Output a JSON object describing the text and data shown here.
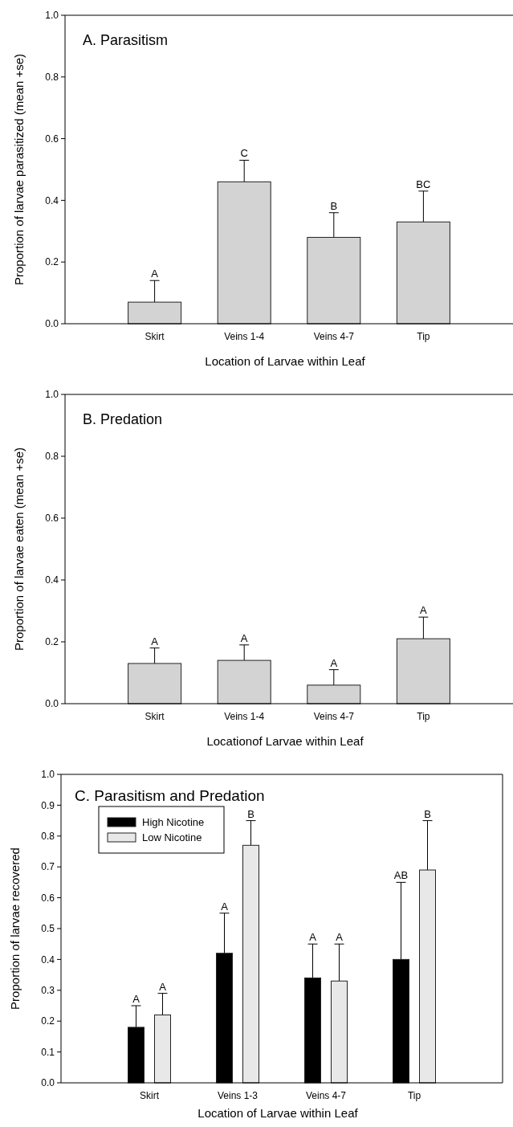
{
  "chart_data": [
    {
      "type": "bar",
      "title": "A. Parasitism",
      "xlabel": "Location of Larvae within Leaf",
      "ylabel": "Proportion of larvae parasitized (mean +se)",
      "categories": [
        "Skirt",
        "Veins 1-4",
        "Veins 4-7",
        "Tip"
      ],
      "series": [
        {
          "color": "#d3d3d3",
          "values": [
            0.07,
            0.46,
            0.28,
            0.33
          ],
          "errors": [
            [
              0.07,
              0.14
            ],
            [
              0.46,
              0.53
            ],
            [
              0.28,
              0.36
            ],
            [
              0.33,
              0.43
            ]
          ]
        }
      ],
      "ylim": [
        0,
        1
      ],
      "yticks": [
        {
          "value": 0,
          "label": "0.0"
        },
        {
          "value": 0.2,
          "label": "0.2"
        },
        {
          "value": 0.4,
          "label": "0.4"
        },
        {
          "value": 0.6,
          "label": "0.6"
        },
        {
          "value": 0.8,
          "label": "0.8"
        },
        {
          "value": 1,
          "label": "1.0"
        }
      ],
      "annotations": [
        {
          "text": "A",
          "x": "Skirt",
          "y": 0.14
        },
        {
          "text": "C",
          "x": "Veins 1-4",
          "y": 0.53
        },
        {
          "text": "B",
          "x": "Veins 4-7",
          "y": 0.36
        },
        {
          "text": "BC",
          "x": "Tip",
          "y": 0.43
        }
      ],
      "grid": false,
      "legend": false
    },
    {
      "type": "bar",
      "title": "B. Predation",
      "xlabel": "Locationof Larvae within Leaf",
      "ylabel": "Proportion of larvae eaten (mean +se)",
      "categories": [
        "Skirt",
        "Veins 1-4",
        "Veins 4-7",
        "Tip"
      ],
      "series": [
        {
          "color": "#d3d3d3",
          "values": [
            0.13,
            0.14,
            0.06,
            0.21
          ],
          "errors": [
            [
              0.13,
              0.18
            ],
            [
              0.14,
              0.19
            ],
            [
              0.06,
              0.11
            ],
            [
              0.21,
              0.28
            ]
          ]
        }
      ],
      "ylim": [
        0,
        1
      ],
      "yticks": [
        {
          "value": 0,
          "label": "0.0"
        },
        {
          "value": 0.2,
          "label": "0.2"
        },
        {
          "value": 0.4,
          "label": "0.4"
        },
        {
          "value": 0.6,
          "label": "0.6"
        },
        {
          "value": 0.8,
          "label": "0.8"
        },
        {
          "value": 1,
          "label": "1.0"
        }
      ],
      "annotations": [
        {
          "text": "A",
          "x": "Skirt",
          "y": 0.18
        },
        {
          "text": "A",
          "x": "Veins 1-4",
          "y": 0.19
        },
        {
          "text": "A",
          "x": "Veins 4-7",
          "y": 0.11
        },
        {
          "text": "A",
          "x": "Tip",
          "y": 0.28
        }
      ],
      "grid": false,
      "legend": false
    },
    {
      "type": "bar",
      "title": "C. Parasitism and Predation",
      "xlabel": "Location of Larvae within Leaf",
      "ylabel": "Proportion of larvae recovered",
      "categories": [
        "Skirt",
        "Veins 1-3",
        "Veins 4-7",
        "Tip"
      ],
      "series": [
        {
          "name": "High Nicotine",
          "color": "#000000",
          "values": [
            0.18,
            0.42,
            0.34,
            0.4
          ],
          "errors": [
            [
              0.18,
              0.25
            ],
            [
              0.42,
              0.55
            ],
            [
              0.34,
              0.45
            ],
            [
              0.4,
              0.65
            ]
          ]
        },
        {
          "name": "Low Nicotine",
          "color": "#e8e8e8",
          "values": [
            0.22,
            0.77,
            0.33,
            0.69
          ],
          "errors": [
            [
              0.22,
              0.29
            ],
            [
              0.77,
              0.85
            ],
            [
              0.33,
              0.45
            ],
            [
              0.69,
              0.85
            ]
          ]
        }
      ],
      "ylim": [
        0,
        1
      ],
      "yticks": [
        {
          "value": 0,
          "label": "0.0"
        },
        {
          "value": 0.1,
          "label": "0.1"
        },
        {
          "value": 0.2,
          "label": "0.2"
        },
        {
          "value": 0.3,
          "label": "0.3"
        },
        {
          "value": 0.4,
          "label": "0.4"
        },
        {
          "value": 0.5,
          "label": "0.5"
        },
        {
          "value": 0.6,
          "label": "0.6"
        },
        {
          "value": 0.7,
          "label": "0.7"
        },
        {
          "value": 0.8,
          "label": "0.8"
        },
        {
          "value": 0.9,
          "label": "0.9"
        },
        {
          "value": 1,
          "label": "1.0"
        }
      ],
      "annotations": [
        "A",
        "A",
        "A",
        "B",
        "A",
        "A",
        "AB",
        "B"
      ],
      "grid": false,
      "legend": "top left"
    }
  ]
}
